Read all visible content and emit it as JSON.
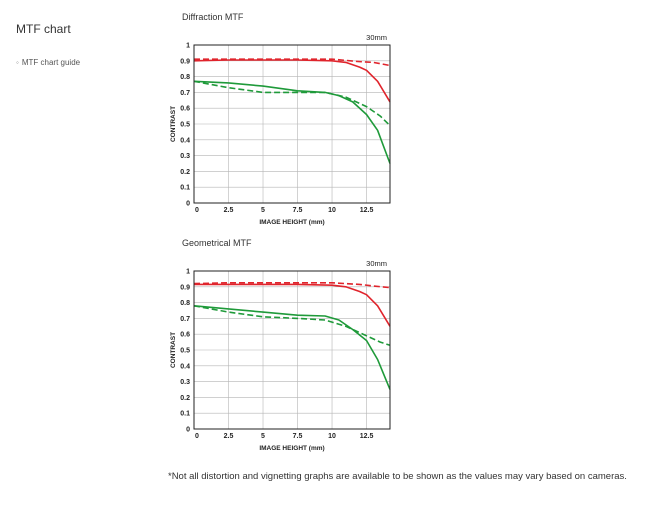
{
  "sidebar": {
    "title": "MTF chart",
    "link_label": "MTF chart guide"
  },
  "footnote": "*Not all distortion and vignetting graphs are available to be shown as the values may vary based on cameras.",
  "colors": {
    "red": "#e0242c",
    "green": "#1f9a3a",
    "grid": "#b5b5b5",
    "axis": "#222222"
  },
  "chart_data": [
    {
      "type": "line",
      "title": "Diffraction MTF",
      "annotation": "30mm",
      "xlabel": "IMAGE HEIGHT (mm)",
      "ylabel": "CONTRAST",
      "xlim": [
        0,
        14.2
      ],
      "ylim": [
        0,
        1
      ],
      "xticks": [
        0,
        2.5,
        5,
        7.5,
        10,
        12.5
      ],
      "xtick_labels": [
        "0",
        "2.5",
        "5",
        "7.5",
        "10",
        "12.5"
      ],
      "yticks": [
        0,
        0.1,
        0.2,
        0.3,
        0.4,
        0.5,
        0.6,
        0.7,
        0.8,
        0.9,
        1
      ],
      "ytick_labels": [
        "0",
        "0.1",
        "0.2",
        "0.3",
        "0.4",
        "0.5",
        "0.6",
        "0.7",
        "0.8",
        "0.9",
        "1"
      ],
      "grid": true,
      "series": [
        {
          "color": "red",
          "dash": false,
          "points": [
            [
              0,
              0.9
            ],
            [
              2.5,
              0.905
            ],
            [
              5,
              0.905
            ],
            [
              7.5,
              0.905
            ],
            [
              10,
              0.9
            ],
            [
              11,
              0.89
            ],
            [
              12,
              0.86
            ],
            [
              12.5,
              0.84
            ],
            [
              13.3,
              0.77
            ],
            [
              14.2,
              0.64
            ]
          ]
        },
        {
          "color": "red",
          "dash": true,
          "points": [
            [
              0,
              0.91
            ],
            [
              2.5,
              0.91
            ],
            [
              5,
              0.91
            ],
            [
              7.5,
              0.91
            ],
            [
              10,
              0.91
            ],
            [
              12,
              0.895
            ],
            [
              13,
              0.89
            ],
            [
              14.2,
              0.87
            ]
          ]
        },
        {
          "color": "green",
          "dash": false,
          "points": [
            [
              0,
              0.77
            ],
            [
              2.5,
              0.76
            ],
            [
              5,
              0.74
            ],
            [
              7.5,
              0.71
            ],
            [
              9.5,
              0.7
            ],
            [
              10.5,
              0.68
            ],
            [
              11.5,
              0.64
            ],
            [
              12.5,
              0.56
            ],
            [
              13.3,
              0.46
            ],
            [
              14.2,
              0.25
            ]
          ]
        },
        {
          "color": "green",
          "dash": true,
          "points": [
            [
              0,
              0.77
            ],
            [
              2.5,
              0.73
            ],
            [
              5,
              0.7
            ],
            [
              7.5,
              0.7
            ],
            [
              9.5,
              0.7
            ],
            [
              11,
              0.67
            ],
            [
              12.5,
              0.61
            ],
            [
              13.5,
              0.55
            ],
            [
              14.2,
              0.49
            ]
          ]
        }
      ]
    },
    {
      "type": "line",
      "title": "Geometrical MTF",
      "annotation": "30mm",
      "xlabel": "IMAGE HEIGHT (mm)",
      "ylabel": "CONTRAST",
      "xlim": [
        0,
        14.2
      ],
      "ylim": [
        0,
        1
      ],
      "xticks": [
        0,
        2.5,
        5,
        7.5,
        10,
        12.5
      ],
      "xtick_labels": [
        "0",
        "2.5",
        "5",
        "7.5",
        "10",
        "12.5"
      ],
      "yticks": [
        0,
        0.1,
        0.2,
        0.3,
        0.4,
        0.5,
        0.6,
        0.7,
        0.8,
        0.9,
        1
      ],
      "ytick_labels": [
        "0",
        "0.1",
        "0.2",
        "0.3",
        "0.4",
        "0.5",
        "0.6",
        "0.7",
        "0.8",
        "0.9",
        "1"
      ],
      "grid": true,
      "series": [
        {
          "color": "red",
          "dash": false,
          "points": [
            [
              0,
              0.915
            ],
            [
              2.5,
              0.915
            ],
            [
              5,
              0.915
            ],
            [
              7.5,
              0.915
            ],
            [
              10,
              0.91
            ],
            [
              11,
              0.9
            ],
            [
              12,
              0.87
            ],
            [
              12.5,
              0.85
            ],
            [
              13.3,
              0.78
            ],
            [
              14.2,
              0.65
            ]
          ]
        },
        {
          "color": "red",
          "dash": true,
          "points": [
            [
              0,
              0.92
            ],
            [
              2.5,
              0.925
            ],
            [
              5,
              0.925
            ],
            [
              7.5,
              0.925
            ],
            [
              10,
              0.925
            ],
            [
              12,
              0.915
            ],
            [
              13,
              0.905
            ],
            [
              14.2,
              0.895
            ]
          ]
        },
        {
          "color": "green",
          "dash": false,
          "points": [
            [
              0,
              0.78
            ],
            [
              2.5,
              0.76
            ],
            [
              5,
              0.74
            ],
            [
              7.5,
              0.72
            ],
            [
              9.5,
              0.715
            ],
            [
              10.5,
              0.69
            ],
            [
              11.5,
              0.63
            ],
            [
              12.5,
              0.56
            ],
            [
              13.3,
              0.44
            ],
            [
              14.2,
              0.25
            ]
          ]
        },
        {
          "color": "green",
          "dash": true,
          "points": [
            [
              0,
              0.78
            ],
            [
              2.5,
              0.74
            ],
            [
              5,
              0.71
            ],
            [
              7.5,
              0.7
            ],
            [
              9.5,
              0.69
            ],
            [
              11,
              0.65
            ],
            [
              12.5,
              0.59
            ],
            [
              13.5,
              0.55
            ],
            [
              14.2,
              0.53
            ]
          ]
        }
      ]
    }
  ]
}
